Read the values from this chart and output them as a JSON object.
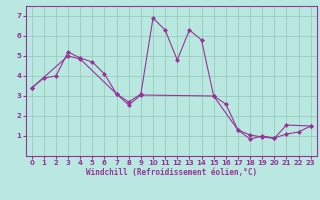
{
  "line1_x": [
    0,
    1,
    2,
    3,
    4,
    5,
    6,
    7,
    8,
    9,
    10,
    11,
    12,
    13,
    14,
    15,
    16,
    17,
    18,
    19,
    20,
    21,
    22,
    23
  ],
  "line1_y": [
    3.4,
    3.9,
    4.0,
    5.2,
    4.9,
    4.7,
    4.1,
    3.1,
    2.7,
    3.1,
    6.9,
    6.3,
    4.8,
    6.3,
    5.8,
    3.0,
    2.6,
    1.3,
    0.85,
    1.0,
    0.9,
    1.1,
    1.2,
    1.5
  ],
  "line2_x": [
    0,
    3,
    4,
    7,
    8,
    9,
    15,
    17,
    18,
    19,
    20,
    21,
    23
  ],
  "line2_y": [
    3.4,
    5.0,
    4.85,
    3.1,
    2.55,
    3.05,
    3.0,
    1.3,
    1.05,
    0.95,
    0.88,
    1.55,
    1.5
  ],
  "line_color": "#993399",
  "bg_color": "#b8e8e0",
  "grid_color": "#99ccbb",
  "xlabel": "Windchill (Refroidissement éolien,°C)",
  "xlim": [
    -0.5,
    23.5
  ],
  "ylim": [
    0,
    7.5
  ],
  "xticks": [
    0,
    1,
    2,
    3,
    4,
    5,
    6,
    7,
    8,
    9,
    10,
    11,
    12,
    13,
    14,
    15,
    16,
    17,
    18,
    19,
    20,
    21,
    22,
    23
  ],
  "yticks": [
    1,
    2,
    3,
    4,
    5,
    6,
    7
  ],
  "tick_fontsize": 5.0,
  "xlabel_fontsize": 5.5,
  "marker": "D",
  "markersize": 2.0,
  "linewidth": 0.8
}
